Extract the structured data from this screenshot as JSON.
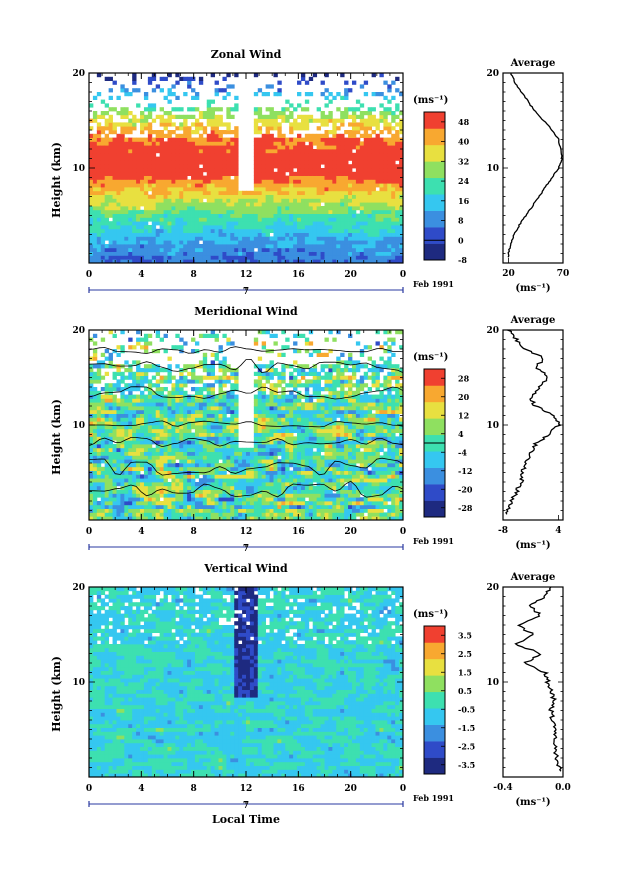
{
  "figure": {
    "time_axis_label": "Local Time",
    "date_label": "Feb 1991",
    "day_marker": "7",
    "units_label": "(ms⁻¹)"
  },
  "chart_data": [
    {
      "type": "heatmap",
      "title": "Zonal Wind",
      "xlabel": "",
      "ylabel": "Height (km)",
      "xlim": [
        0,
        24
      ],
      "ylim": [
        0,
        20
      ],
      "x_ticks": [
        "0",
        "4",
        "8",
        "12",
        "16",
        "20",
        "0"
      ],
      "y_ticks": [
        "10",
        "20"
      ],
      "colorbar": {
        "label": "(ms⁻¹)",
        "ticks": [
          "48",
          "40",
          "32",
          "24",
          "16",
          "8",
          "0",
          "-8"
        ],
        "colors": [
          "#1e2a80",
          "#2f4bc8",
          "#3b8fe0",
          "#35c7f0",
          "#3de0b0",
          "#8fe060",
          "#e8e040",
          "#f8a830",
          "#f04030"
        ],
        "range": [
          -8,
          52
        ]
      },
      "average_profile": {
        "title": "Average",
        "xlabel": "(ms⁻¹)",
        "x_ticks": [
          "20",
          "70"
        ],
        "xlim": [
          15,
          70
        ],
        "y_ticks": [
          "10",
          "20"
        ],
        "heights": [
          1,
          2,
          3,
          4,
          5,
          6,
          7,
          8,
          9,
          10,
          11,
          12,
          13,
          14,
          15,
          16,
          17,
          18,
          19,
          20
        ],
        "values": [
          20,
          22,
          25,
          30,
          36,
          42,
          48,
          54,
          60,
          66,
          69,
          68,
          66,
          60,
          52,
          44,
          38,
          32,
          26,
          22
        ]
      }
    },
    {
      "type": "heatmap",
      "title": "Meridional Wind",
      "xlabel": "",
      "ylabel": "Height (km)",
      "xlim": [
        0,
        24
      ],
      "ylim": [
        0,
        20
      ],
      "x_ticks": [
        "0",
        "4",
        "8",
        "12",
        "16",
        "20",
        "0"
      ],
      "y_ticks": [
        "10",
        "20"
      ],
      "colorbar": {
        "label": "(ms⁻¹)",
        "ticks": [
          "28",
          "20",
          "12",
          "4",
          "-4",
          "-12",
          "-20",
          "-28"
        ],
        "colors": [
          "#1e2a80",
          "#2f4bc8",
          "#3b8fe0",
          "#35c7f0",
          "#3de0b0",
          "#8fe060",
          "#e8e040",
          "#f8a830",
          "#f04030"
        ],
        "range": [
          -32,
          32
        ]
      },
      "average_profile": {
        "title": "Average",
        "xlabel": "(ms⁻¹)",
        "x_ticks": [
          "-8",
          "4"
        ],
        "xlim": [
          -8,
          5
        ],
        "y_ticks": [
          "10",
          "20"
        ],
        "heights": [
          1,
          2,
          3,
          4,
          5,
          6,
          7,
          8,
          9,
          10,
          11,
          12,
          13,
          14,
          15,
          16,
          17,
          18,
          19,
          20
        ],
        "values": [
          -7,
          -6,
          -5,
          -4,
          -4,
          -3,
          -2,
          -1,
          2,
          4,
          3,
          -1,
          -2,
          0,
          2,
          -1,
          1,
          -3,
          -5,
          -7
        ]
      }
    },
    {
      "type": "heatmap",
      "title": "Vertical Wind",
      "xlabel": "Local Time",
      "ylabel": "Height (km)",
      "xlim": [
        0,
        24
      ],
      "ylim": [
        0,
        20
      ],
      "x_ticks": [
        "0",
        "4",
        "8",
        "12",
        "16",
        "20",
        "0"
      ],
      "y_ticks": [
        "10",
        "20"
      ],
      "colorbar": {
        "label": "(ms⁻¹)",
        "ticks": [
          "3.5",
          "2.5",
          "1.5",
          "0.5",
          "-0.5",
          "-1.5",
          "-2.5",
          "-3.5"
        ],
        "colors": [
          "#1e2a80",
          "#2f4bc8",
          "#3b8fe0",
          "#35c7f0",
          "#3de0b0",
          "#8fe060",
          "#e8e040",
          "#f8a830",
          "#f04030"
        ],
        "range": [
          -4,
          4
        ]
      },
      "average_profile": {
        "title": "Average",
        "xlabel": "(ms⁻¹)",
        "x_ticks": [
          "-0.4",
          "0.0"
        ],
        "xlim": [
          -0.4,
          0.0
        ],
        "y_ticks": [
          "10",
          "20"
        ],
        "heights": [
          1,
          2,
          3,
          4,
          5,
          6,
          7,
          8,
          9,
          10,
          11,
          12,
          13,
          14,
          15,
          16,
          17,
          18,
          19,
          20
        ],
        "values": [
          -0.02,
          -0.04,
          -0.05,
          -0.06,
          -0.05,
          -0.07,
          -0.08,
          -0.06,
          -0.08,
          -0.1,
          -0.12,
          -0.25,
          -0.15,
          -0.32,
          -0.2,
          -0.3,
          -0.15,
          -0.22,
          -0.12,
          -0.08
        ]
      }
    }
  ]
}
